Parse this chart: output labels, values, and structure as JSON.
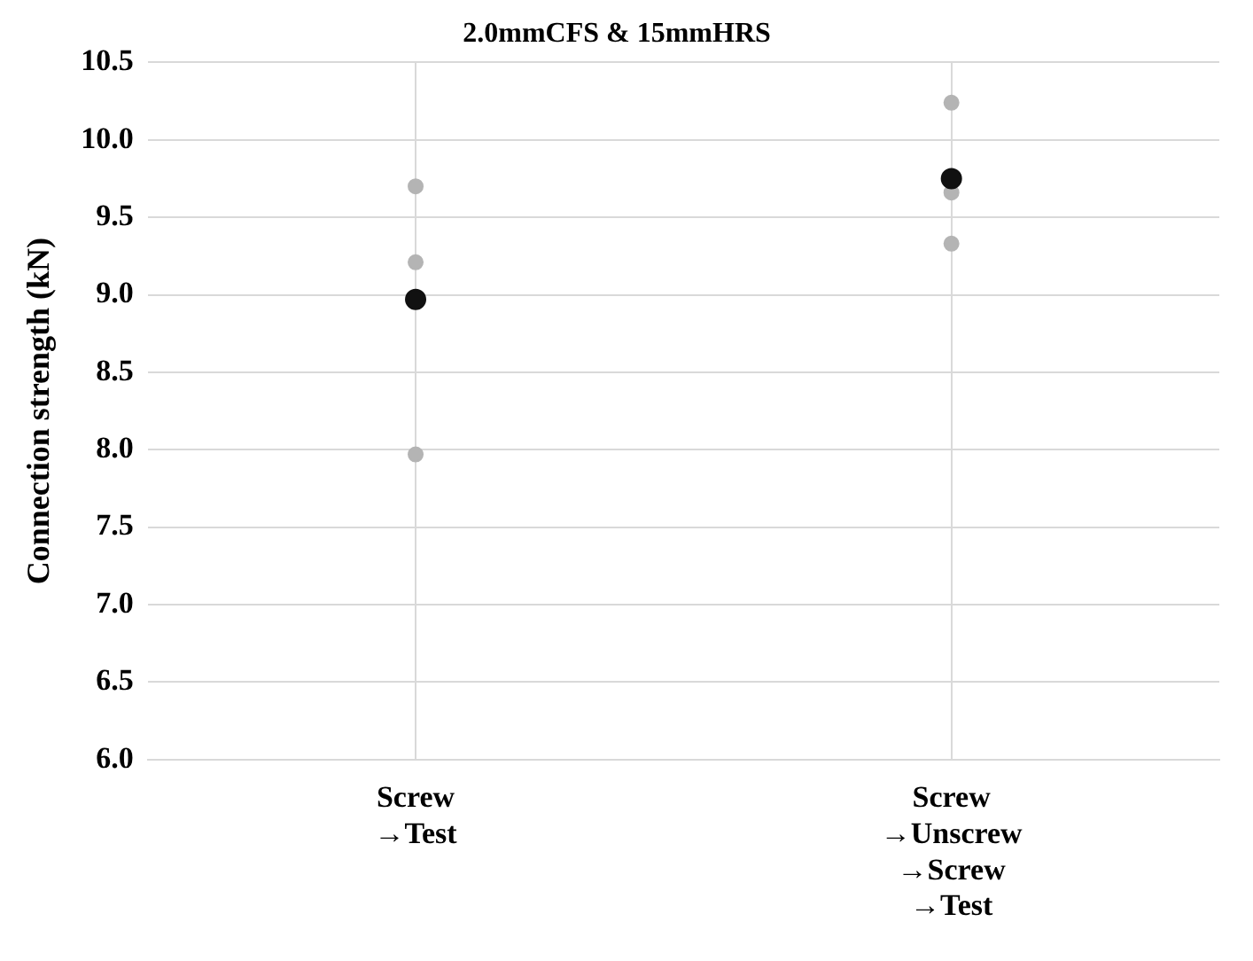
{
  "chart_data": {
    "type": "scatter",
    "title": "2.0mmCFS & 15mmHRS",
    "ylabel": "Connection strength (kN)",
    "categories": [
      "Screw\n→Test",
      "Screw\n→Unscrew\n→Screw\n→Test"
    ],
    "series": [
      {
        "color": "#b4b4b4",
        "x": [
          "Screw\n→Test",
          "Screw\n→Test",
          "Screw\n→Test",
          "Screw\n→Unscrew\n→Screw\n→Test",
          "Screw\n→Unscrew\n→Screw\n→Test",
          "Screw\n→Unscrew\n→Screw\n→Test"
        ],
        "values": [
          9.7,
          9.21,
          7.97,
          10.24,
          9.66,
          9.33
        ]
      },
      {
        "color": "#111111",
        "x": [
          "Screw\n→Test",
          "Screw\n→Unscrew\n→Screw\n→Test"
        ],
        "values": [
          8.97,
          9.75
        ]
      }
    ],
    "ylim": [
      6.0,
      10.5
    ],
    "yticks": [
      {
        "value": 6,
        "label": "6.0"
      },
      {
        "value": 6.5,
        "label": "6.5"
      },
      {
        "value": 7,
        "label": "7.0"
      },
      {
        "value": 7.5,
        "label": "7.5"
      },
      {
        "value": 8,
        "label": "8.0"
      },
      {
        "value": 8.5,
        "label": "8.5"
      },
      {
        "value": 9,
        "label": "9.0"
      },
      {
        "value": 9.5,
        "label": "9.5"
      },
      {
        "value": 10,
        "label": "10.0"
      },
      {
        "value": 10.5,
        "label": "10.5"
      }
    ],
    "grid": true,
    "legend": false,
    "marker": "circle"
  }
}
